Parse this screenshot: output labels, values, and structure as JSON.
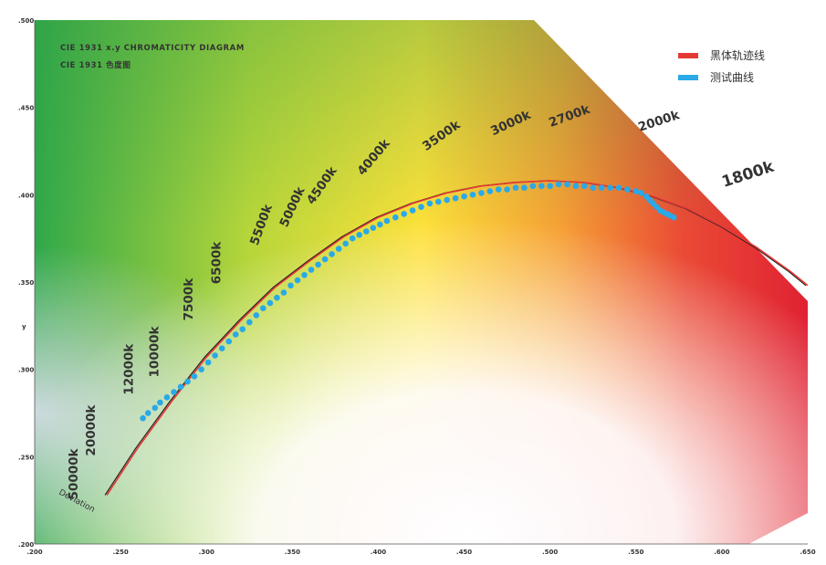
{
  "chart_data": {
    "type": "line",
    "title": "CIE 1931 x.y CHROMATICITY DIAGRAM",
    "subtitle": "CIE 1931 色度图",
    "ylabel": "y",
    "xlim": [
      0.2,
      0.65
    ],
    "ylim": [
      0.2,
      0.5
    ],
    "x_ticks": [
      ".200",
      ".250",
      ".300",
      ".350",
      ".400",
      ".450",
      ".500",
      ".550",
      ".600",
      ".650"
    ],
    "y_ticks": [
      ".200",
      ".250",
      ".300",
      ".350",
      ".400",
      ".450",
      ".500"
    ],
    "legend_position": "top-right",
    "annotation": "Deviation",
    "series": [
      {
        "name": "黑体轨迹线",
        "color": "#e53935",
        "points": [
          [
            0.242,
            0.228
          ],
          [
            0.26,
            0.255
          ],
          [
            0.28,
            0.282
          ],
          [
            0.3,
            0.307
          ],
          [
            0.32,
            0.328
          ],
          [
            0.34,
            0.347
          ],
          [
            0.36,
            0.362
          ],
          [
            0.38,
            0.376
          ],
          [
            0.4,
            0.387
          ],
          [
            0.42,
            0.395
          ],
          [
            0.44,
            0.401
          ],
          [
            0.46,
            0.405
          ],
          [
            0.48,
            0.407
          ],
          [
            0.5,
            0.408
          ],
          [
            0.52,
            0.407
          ],
          [
            0.54,
            0.404
          ],
          [
            0.56,
            0.399
          ],
          [
            0.58,
            0.392
          ],
          [
            0.6,
            0.382
          ],
          [
            0.62,
            0.37
          ],
          [
            0.64,
            0.356
          ],
          [
            0.65,
            0.348
          ]
        ]
      },
      {
        "name": "测试曲线",
        "color": "#29a9e8",
        "points": [
          [
            0.263,
            0.272
          ],
          [
            0.266,
            0.275
          ],
          [
            0.27,
            0.278
          ],
          [
            0.273,
            0.281
          ],
          [
            0.277,
            0.284
          ],
          [
            0.281,
            0.287
          ],
          [
            0.285,
            0.29
          ],
          [
            0.289,
            0.293
          ],
          [
            0.293,
            0.296
          ],
          [
            0.297,
            0.3
          ],
          [
            0.301,
            0.304
          ],
          [
            0.305,
            0.308
          ],
          [
            0.309,
            0.312
          ],
          [
            0.313,
            0.316
          ],
          [
            0.317,
            0.32
          ],
          [
            0.321,
            0.323
          ],
          [
            0.325,
            0.327
          ],
          [
            0.329,
            0.331
          ],
          [
            0.333,
            0.335
          ],
          [
            0.337,
            0.338
          ],
          [
            0.341,
            0.341
          ],
          [
            0.345,
            0.344
          ],
          [
            0.349,
            0.348
          ],
          [
            0.353,
            0.351
          ],
          [
            0.357,
            0.354
          ],
          [
            0.361,
            0.357
          ],
          [
            0.365,
            0.36
          ],
          [
            0.369,
            0.363
          ],
          [
            0.373,
            0.366
          ],
          [
            0.377,
            0.369
          ],
          [
            0.381,
            0.372
          ],
          [
            0.385,
            0.375
          ],
          [
            0.389,
            0.377
          ],
          [
            0.393,
            0.379
          ],
          [
            0.397,
            0.381
          ],
          [
            0.401,
            0.383
          ],
          [
            0.405,
            0.385
          ],
          [
            0.41,
            0.387
          ],
          [
            0.415,
            0.389
          ],
          [
            0.42,
            0.391
          ],
          [
            0.425,
            0.393
          ],
          [
            0.43,
            0.395
          ],
          [
            0.435,
            0.396
          ],
          [
            0.44,
            0.397
          ],
          [
            0.445,
            0.398
          ],
          [
            0.45,
            0.399
          ],
          [
            0.455,
            0.4
          ],
          [
            0.46,
            0.401
          ],
          [
            0.465,
            0.402
          ],
          [
            0.47,
            0.403
          ],
          [
            0.475,
            0.403
          ],
          [
            0.48,
            0.404
          ],
          [
            0.485,
            0.404
          ],
          [
            0.49,
            0.405
          ],
          [
            0.495,
            0.405
          ],
          [
            0.5,
            0.405
          ],
          [
            0.505,
            0.406
          ],
          [
            0.51,
            0.406
          ],
          [
            0.515,
            0.405
          ],
          [
            0.52,
            0.405
          ],
          [
            0.525,
            0.404
          ],
          [
            0.53,
            0.404
          ],
          [
            0.535,
            0.404
          ],
          [
            0.54,
            0.404
          ],
          [
            0.545,
            0.403
          ],
          [
            0.55,
            0.402
          ],
          [
            0.553,
            0.401
          ],
          [
            0.556,
            0.399
          ],
          [
            0.558,
            0.397
          ],
          [
            0.56,
            0.395
          ],
          [
            0.562,
            0.393
          ],
          [
            0.564,
            0.391
          ],
          [
            0.566,
            0.39
          ],
          [
            0.568,
            0.389
          ],
          [
            0.57,
            0.388
          ],
          [
            0.572,
            0.387
          ]
        ]
      }
    ],
    "cct_labels": [
      {
        "text": "50000k",
        "x": 0.225,
        "y": 0.24,
        "angle": -90
      },
      {
        "text": "20000k",
        "x": 0.235,
        "y": 0.265,
        "angle": -90
      },
      {
        "text": "12000k",
        "x": 0.257,
        "y": 0.3,
        "angle": -90
      },
      {
        "text": "10000k",
        "x": 0.272,
        "y": 0.31,
        "angle": -90
      },
      {
        "text": "7500k",
        "x": 0.292,
        "y": 0.34,
        "angle": -90
      },
      {
        "text": "6500k",
        "x": 0.308,
        "y": 0.361,
        "angle": -90
      },
      {
        "text": "5500k",
        "x": 0.334,
        "y": 0.382,
        "angle": -70
      },
      {
        "text": "5000k",
        "x": 0.352,
        "y": 0.392,
        "angle": -65
      },
      {
        "text": "4500k",
        "x": 0.369,
        "y": 0.404,
        "angle": -55
      },
      {
        "text": "4000k",
        "x": 0.399,
        "y": 0.42,
        "angle": -50
      },
      {
        "text": "3500k",
        "x": 0.438,
        "y": 0.432,
        "angle": -35
      },
      {
        "text": "3000k",
        "x": 0.478,
        "y": 0.439,
        "angle": -25
      },
      {
        "text": "2700k",
        "x": 0.512,
        "y": 0.443,
        "angle": -20
      },
      {
        "text": "2000k",
        "x": 0.564,
        "y": 0.44,
        "angle": -18
      },
      {
        "text": "1800k",
        "x": 0.616,
        "y": 0.409,
        "angle": -18,
        "big": true
      }
    ]
  },
  "legend": [
    {
      "label": "黑体轨迹线",
      "color": "#e53935"
    },
    {
      "label": "测试曲线",
      "color": "#29a9e8"
    }
  ]
}
